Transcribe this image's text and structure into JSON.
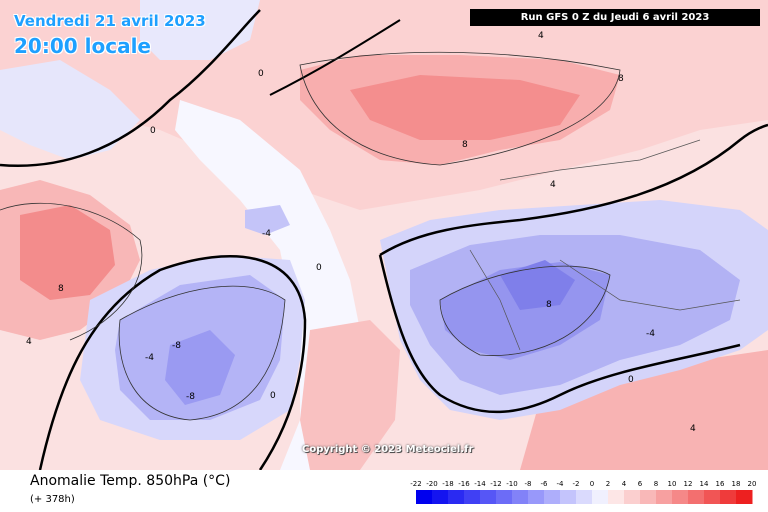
{
  "header": {
    "date": "Vendredi 21 avril 2023",
    "time": "20:00 locale",
    "run": "Run GFS 0 Z du Jeudi 6 avril 2023"
  },
  "watermark": "Copyright © 2023 Meteociel.fr",
  "footer": {
    "variable": "Anomalie Temp. 850hPa (°C)",
    "lead": "(+ 378h)"
  },
  "scale": {
    "ticks": [
      "-22",
      "-20",
      "-18",
      "-16",
      "-14",
      "-12",
      "-10",
      "-8",
      "-6",
      "-4",
      "-2",
      "0",
      "2",
      "4",
      "6",
      "8",
      "10",
      "12",
      "14",
      "16",
      "18",
      "20"
    ],
    "colors": [
      "#0000ee",
      "#1414f0",
      "#2a2af2",
      "#4040f4",
      "#5656f6",
      "#6c6cf7",
      "#8282f8",
      "#9898fa",
      "#aeaefb",
      "#c4c4fc",
      "#dadafd",
      "#f0f0fe",
      "#fde6e6",
      "#fbcfcf",
      "#f9b8b8",
      "#f7a0a0",
      "#f58888",
      "#f36f6f",
      "#f15555",
      "#ef3b3b",
      "#ed2020",
      "#eb0000"
    ]
  },
  "contour_labels": [
    {
      "text": "0",
      "id": "label-0-a"
    },
    {
      "text": "0",
      "id": "label-0-b"
    },
    {
      "text": "0",
      "id": "label-0-c"
    },
    {
      "text": "4",
      "id": "label-4-a"
    },
    {
      "text": "8",
      "id": "label-8-a"
    },
    {
      "text": "8",
      "id": "label-8-b"
    },
    {
      "text": "-4",
      "id": "label-m4-a"
    },
    {
      "text": "-8",
      "id": "label-m8-a"
    },
    {
      "text": "-8",
      "id": "label-m8-b"
    },
    {
      "text": "-4",
      "id": "label-m4-b"
    },
    {
      "text": "8",
      "id": "label-8-c"
    },
    {
      "text": "4",
      "id": "label-4-b"
    },
    {
      "text": "0",
      "id": "label-0-d"
    },
    {
      "text": "-4",
      "id": "label-m4-c"
    },
    {
      "text": "8",
      "id": "label-8-d"
    },
    {
      "text": "4",
      "id": "label-4-c"
    },
    {
      "text": "4",
      "id": "label-4-d"
    },
    {
      "text": "0",
      "id": "label-0-e"
    }
  ]
}
